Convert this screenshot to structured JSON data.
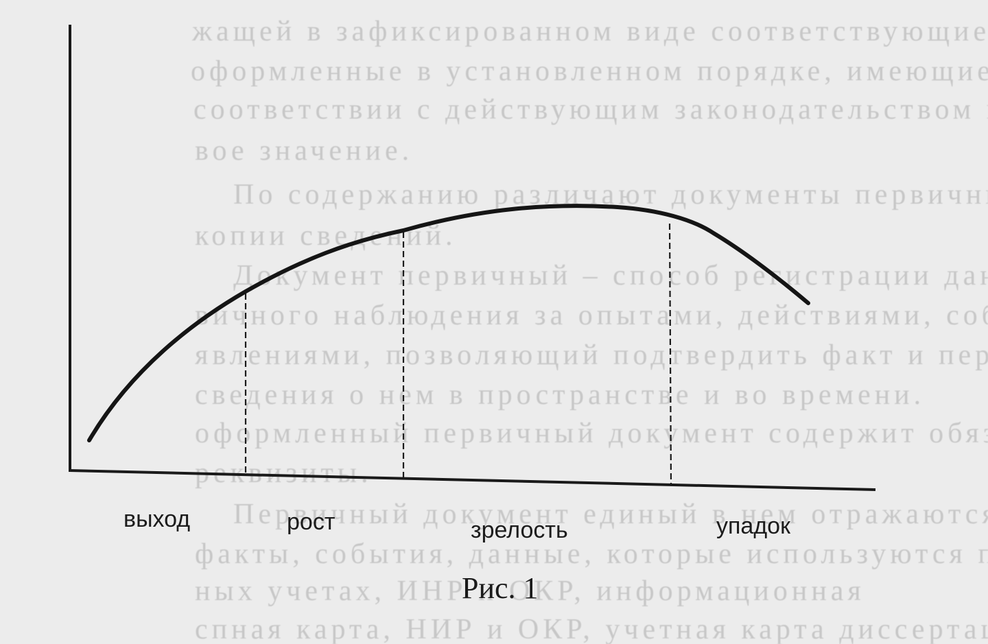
{
  "stages": [
    {
      "label": "выход"
    },
    {
      "label": "рост"
    },
    {
      "label": "зрелость"
    },
    {
      "label": "упадок"
    }
  ],
  "caption": "Рис. 1",
  "background_text": [
    "жащей в зафиксированном виде соответствующие данные",
    "оформленные в установленном порядке, имеющие",
    "соответствии с действующим законодательством прав",
    "вое значение.",
    "По содержанию различают документы первичные и",
    "копии сведений.",
    "Документ первичный – способ регистрации данных",
    "вичного наблюдения за опытами, действиями, событиями",
    "явлениями, позволяющий подтвердить факт и перед",
    "сведения о нем в пространстве и во времени.",
    "оформленный первичный документ содержит обязательные",
    "реквизиты.",
    "Первичный документ единый в нем отражаются",
    "факты, события, данные, которые используются при раз",
    "ных учетах, ИНР и ОКР, информационная",
    "спная карта, НИР и ОКР, учетная карта диссертаций и т.п."
  ],
  "colors": {
    "ink": "#1a1a1a",
    "paper": "#ececec",
    "bleed_text": "#a9a9a9"
  }
}
